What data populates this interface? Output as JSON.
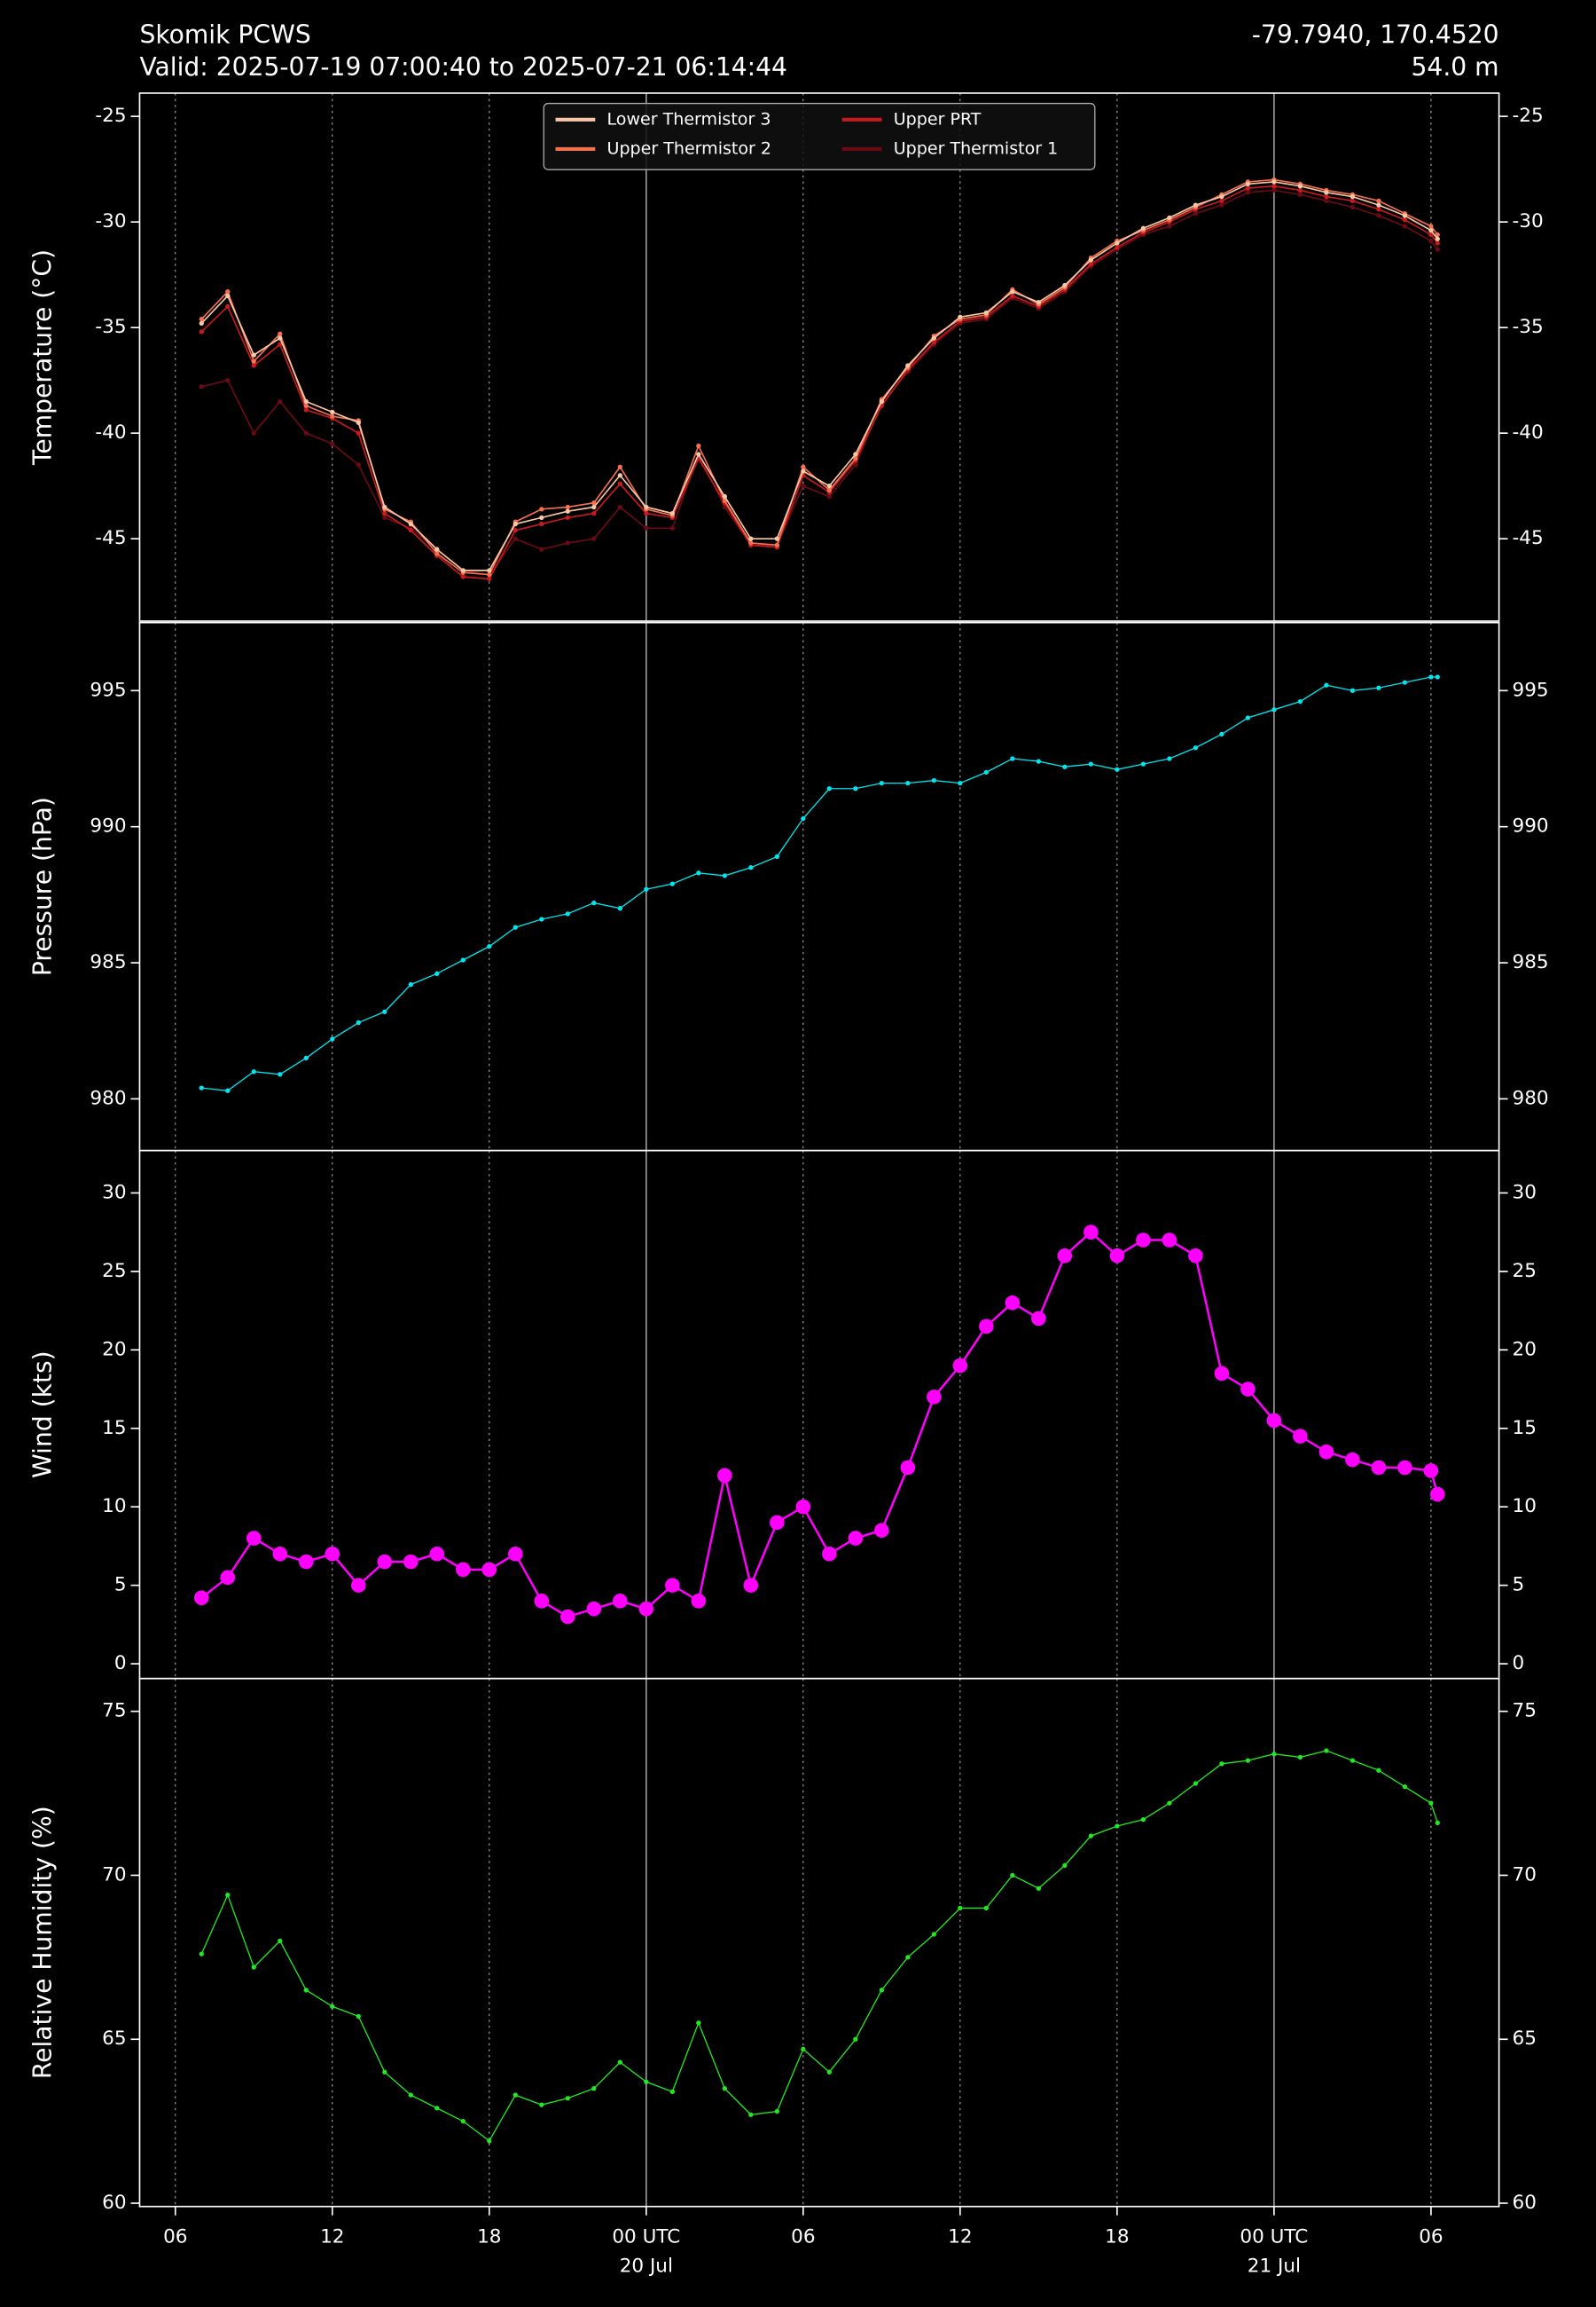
{
  "header": {
    "title": "Skomik PCWS",
    "subtitle": "Valid: 2025-07-19 07:00:40 to 2025-07-21 06:14:44",
    "location": "-79.7940, 170.4520",
    "elevation": "54.0 m"
  },
  "chart_data": [
    {
      "type": "line",
      "y_label": "Temperature (°C)",
      "legend": "upper center",
      "xlim": [
        "19 Jul 04:38",
        "21 Jul 08:36"
      ],
      "ylim": [
        -48.9,
        -23.9
      ],
      "yticks": [
        -45,
        -40,
        -35,
        -30,
        -25
      ],
      "grid": true,
      "x": [
        "19 Jul 07:00",
        "19 Jul 08:00",
        "19 Jul 09:00",
        "19 Jul 10:00",
        "19 Jul 11:00",
        "19 Jul 12:00",
        "19 Jul 13:00",
        "19 Jul 14:00",
        "19 Jul 15:00",
        "19 Jul 16:00",
        "19 Jul 17:00",
        "19 Jul 18:00",
        "19 Jul 19:00",
        "19 Jul 20:00",
        "19 Jul 21:00",
        "19 Jul 22:00",
        "19 Jul 23:00",
        "20 Jul 00:00",
        "20 Jul 01:00",
        "20 Jul 02:00",
        "20 Jul 03:00",
        "20 Jul 04:00",
        "20 Jul 05:00",
        "20 Jul 06:00",
        "20 Jul 07:00",
        "20 Jul 08:00",
        "20 Jul 09:00",
        "20 Jul 10:00",
        "20 Jul 11:00",
        "20 Jul 12:00",
        "20 Jul 13:00",
        "20 Jul 14:00",
        "20 Jul 15:00",
        "20 Jul 16:00",
        "20 Jul 17:00",
        "20 Jul 18:00",
        "20 Jul 19:00",
        "20 Jul 20:00",
        "20 Jul 21:00",
        "20 Jul 22:00",
        "20 Jul 23:00",
        "21 Jul 00:00",
        "21 Jul 01:00",
        "21 Jul 02:00",
        "21 Jul 03:00",
        "21 Jul 04:00",
        "21 Jul 05:00",
        "21 Jul 06:00",
        "21 Jul 06:15"
      ],
      "series": [
        {
          "name": "Lower Thermistor 3",
          "color": "#f9c7a5",
          "values": [
            -34.8,
            -33.5,
            -36.3,
            -35.5,
            -38.5,
            -39,
            -39.5,
            -43.5,
            -44.3,
            -45.5,
            -46.5,
            -46.5,
            -44.3,
            -44,
            -43.7,
            -43.5,
            -42,
            -43.5,
            -43.8,
            -41,
            -43,
            -45,
            -45,
            -41.8,
            -42.5,
            -41,
            -38.5,
            -36.8,
            -35.5,
            -34.5,
            -34.3,
            -33.3,
            -33.8,
            -33,
            -31.8,
            -31,
            -30.3,
            -29.8,
            -29.2,
            -28.8,
            -28.2,
            -28.1,
            -28.3,
            -28.6,
            -28.8,
            -29.2,
            -29.7,
            -30.4,
            -30.8
          ]
        },
        {
          "name": "Upper Thermistor 2",
          "color": "#f4704f",
          "values": [
            -34.6,
            -33.3,
            -36.6,
            -35.3,
            -38.7,
            -39.2,
            -39.4,
            -43.6,
            -44.2,
            -45.7,
            -46.6,
            -46.7,
            -44.2,
            -43.6,
            -43.5,
            -43.3,
            -41.6,
            -43.6,
            -43.9,
            -40.6,
            -43.2,
            -45.2,
            -45.3,
            -41.6,
            -42.7,
            -41.2,
            -38.4,
            -36.9,
            -35.4,
            -34.6,
            -34.4,
            -33.2,
            -33.9,
            -33.1,
            -31.7,
            -30.9,
            -30.4,
            -29.9,
            -29.3,
            -28.7,
            -28.1,
            -28.0,
            -28.2,
            -28.5,
            -28.7,
            -29.0,
            -29.6,
            -30.2,
            -30.6
          ]
        },
        {
          "name": "Upper PRT",
          "color": "#c8191e",
          "values": [
            -35.2,
            -34,
            -36.8,
            -35.8,
            -38.9,
            -39.3,
            -40,
            -43.8,
            -44.6,
            -45.8,
            -46.8,
            -46.9,
            -44.6,
            -44.3,
            -44,
            -43.8,
            -42.4,
            -43.8,
            -44,
            -41.2,
            -43.3,
            -45.3,
            -45.4,
            -42,
            -42.8,
            -41.3,
            -38.7,
            -37,
            -35.7,
            -34.7,
            -34.5,
            -33.5,
            -34,
            -33.2,
            -32,
            -31.2,
            -30.5,
            -30,
            -29.4,
            -29,
            -28.4,
            -28.3,
            -28.5,
            -28.8,
            -29,
            -29.4,
            -29.9,
            -30.6,
            -31
          ]
        },
        {
          "name": "Upper Thermistor 1",
          "color": "#6b0a14",
          "values": [
            -37.8,
            -37.5,
            -40,
            -38.5,
            -40,
            -40.5,
            -41.5,
            -44,
            -44.5,
            -45.5,
            -46.5,
            -46.7,
            -45,
            -45.5,
            -45.2,
            -45,
            -43.5,
            -44.5,
            -44.5,
            -41,
            -43.5,
            -45.3,
            -45.3,
            -42.5,
            -43,
            -41.5,
            -38.6,
            -37.1,
            -35.8,
            -34.8,
            -34.6,
            -33.6,
            -34.1,
            -33.3,
            -32.1,
            -31.3,
            -30.6,
            -30.2,
            -29.6,
            -29.2,
            -28.6,
            -28.5,
            -28.7,
            -29,
            -29.3,
            -29.7,
            -30.2,
            -30.9,
            -31.3
          ]
        }
      ]
    },
    {
      "type": "line",
      "y_label": "Pressure (hPa)",
      "xlim": [
        "19 Jul 04:38",
        "21 Jul 08:36"
      ],
      "ylim": [
        978.1,
        997.5
      ],
      "yticks": [
        980,
        985,
        990,
        995
      ],
      "grid": true,
      "x": [
        "19 Jul 07:00",
        "19 Jul 08:00",
        "19 Jul 09:00",
        "19 Jul 10:00",
        "19 Jul 11:00",
        "19 Jul 12:00",
        "19 Jul 13:00",
        "19 Jul 14:00",
        "19 Jul 15:00",
        "19 Jul 16:00",
        "19 Jul 17:00",
        "19 Jul 18:00",
        "19 Jul 19:00",
        "19 Jul 20:00",
        "19 Jul 21:00",
        "19 Jul 22:00",
        "19 Jul 23:00",
        "20 Jul 00:00",
        "20 Jul 01:00",
        "20 Jul 02:00",
        "20 Jul 03:00",
        "20 Jul 04:00",
        "20 Jul 05:00",
        "20 Jul 06:00",
        "20 Jul 07:00",
        "20 Jul 08:00",
        "20 Jul 09:00",
        "20 Jul 10:00",
        "20 Jul 11:00",
        "20 Jul 12:00",
        "20 Jul 13:00",
        "20 Jul 14:00",
        "20 Jul 15:00",
        "20 Jul 16:00",
        "20 Jul 17:00",
        "20 Jul 18:00",
        "20 Jul 19:00",
        "20 Jul 20:00",
        "20 Jul 21:00",
        "20 Jul 22:00",
        "20 Jul 23:00",
        "21 Jul 00:00",
        "21 Jul 01:00",
        "21 Jul 02:00",
        "21 Jul 03:00",
        "21 Jul 04:00",
        "21 Jul 05:00",
        "21 Jul 06:00",
        "21 Jul 06:15"
      ],
      "series": [
        {
          "name": "Pressure",
          "color": "#00e5ee",
          "values": [
            980.4,
            980.3,
            981,
            980.9,
            981.5,
            982.2,
            982.8,
            983.2,
            984.2,
            984.6,
            985.1,
            985.6,
            986.3,
            986.6,
            986.8,
            987.2,
            987,
            987.7,
            987.9,
            988.3,
            988.2,
            988.5,
            988.9,
            990.3,
            991.4,
            991.4,
            991.6,
            991.6,
            991.7,
            991.6,
            992,
            992.5,
            992.4,
            992.2,
            992.3,
            992.1,
            992.3,
            992.5,
            992.9,
            993.4,
            994,
            994.3,
            994.6,
            995.2,
            995,
            995.1,
            995.3,
            995.5,
            995.5
          ]
        }
      ]
    },
    {
      "type": "line",
      "y_label": "Wind (kts)",
      "xlim": [
        "19 Jul 04:38",
        "21 Jul 08:36"
      ],
      "ylim": [
        -0.94,
        32.7
      ],
      "yticks": [
        0,
        5,
        10,
        15,
        20,
        25,
        30
      ],
      "grid": true,
      "x": [
        "19 Jul 07:00",
        "19 Jul 08:00",
        "19 Jul 09:00",
        "19 Jul 10:00",
        "19 Jul 11:00",
        "19 Jul 12:00",
        "19 Jul 13:00",
        "19 Jul 14:00",
        "19 Jul 15:00",
        "19 Jul 16:00",
        "19 Jul 17:00",
        "19 Jul 18:00",
        "19 Jul 19:00",
        "19 Jul 20:00",
        "19 Jul 21:00",
        "19 Jul 22:00",
        "19 Jul 23:00",
        "20 Jul 00:00",
        "20 Jul 01:00",
        "20 Jul 02:00",
        "20 Jul 03:00",
        "20 Jul 04:00",
        "20 Jul 05:00",
        "20 Jul 06:00",
        "20 Jul 07:00",
        "20 Jul 08:00",
        "20 Jul 09:00",
        "20 Jul 10:00",
        "20 Jul 11:00",
        "20 Jul 12:00",
        "20 Jul 13:00",
        "20 Jul 14:00",
        "20 Jul 15:00",
        "20 Jul 16:00",
        "20 Jul 17:00",
        "20 Jul 18:00",
        "20 Jul 19:00",
        "20 Jul 20:00",
        "20 Jul 21:00",
        "20 Jul 22:00",
        "20 Jul 23:00",
        "21 Jul 00:00",
        "21 Jul 01:00",
        "21 Jul 02:00",
        "21 Jul 03:00",
        "21 Jul 04:00",
        "21 Jul 05:00",
        "21 Jul 06:00",
        "21 Jul 06:15"
      ],
      "series": [
        {
          "name": "Wind",
          "color": "#ff00ff",
          "values": [
            4.2,
            5.5,
            8,
            7,
            6.5,
            7,
            5,
            6.5,
            6.5,
            7,
            6,
            6,
            7,
            4,
            3,
            3.5,
            4,
            3.5,
            5,
            4,
            12,
            5,
            9,
            10,
            7,
            8,
            8.5,
            12.5,
            17,
            19,
            21.5,
            23,
            22,
            26,
            27.5,
            26,
            27,
            27,
            26,
            18.5,
            17.5,
            15.5,
            14.5,
            13.5,
            13,
            12.5,
            12.5,
            12.3,
            10.8
          ]
        }
      ]
    },
    {
      "type": "line",
      "y_label": "Relative Humidity (%)",
      "xlim": [
        "19 Jul 04:38",
        "21 Jul 08:36"
      ],
      "ylim": [
        59.9,
        76
      ],
      "yticks": [
        60,
        65,
        70,
        75
      ],
      "grid": true,
      "xticks": [
        {
          "value": "19 Jul 06:00",
          "label": "06"
        },
        {
          "value": "19 Jul 12:00",
          "label": "12"
        },
        {
          "value": "19 Jul 18:00",
          "label": "18"
        },
        {
          "value": "20 Jul 00:00",
          "label": [
            "00 UTC",
            "20 Jul"
          ]
        },
        {
          "value": "20 Jul 06:00",
          "label": "06"
        },
        {
          "value": "20 Jul 12:00",
          "label": "12"
        },
        {
          "value": "20 Jul 18:00",
          "label": "18"
        },
        {
          "value": "21 Jul 00:00",
          "label": [
            "00 UTC",
            "21 Jul"
          ]
        },
        {
          "value": "21 Jul 06:00",
          "label": "06"
        }
      ],
      "x": [
        "19 Jul 07:00",
        "19 Jul 08:00",
        "19 Jul 09:00",
        "19 Jul 10:00",
        "19 Jul 11:00",
        "19 Jul 12:00",
        "19 Jul 13:00",
        "19 Jul 14:00",
        "19 Jul 15:00",
        "19 Jul 16:00",
        "19 Jul 17:00",
        "19 Jul 18:00",
        "19 Jul 19:00",
        "19 Jul 20:00",
        "19 Jul 21:00",
        "19 Jul 22:00",
        "19 Jul 23:00",
        "20 Jul 00:00",
        "20 Jul 01:00",
        "20 Jul 02:00",
        "20 Jul 03:00",
        "20 Jul 04:00",
        "20 Jul 05:00",
        "20 Jul 06:00",
        "20 Jul 07:00",
        "20 Jul 08:00",
        "20 Jul 09:00",
        "20 Jul 10:00",
        "20 Jul 11:00",
        "20 Jul 12:00",
        "20 Jul 13:00",
        "20 Jul 14:00",
        "20 Jul 15:00",
        "20 Jul 16:00",
        "20 Jul 17:00",
        "20 Jul 18:00",
        "20 Jul 19:00",
        "20 Jul 20:00",
        "20 Jul 21:00",
        "20 Jul 22:00",
        "20 Jul 23:00",
        "21 Jul 00:00",
        "21 Jul 01:00",
        "21 Jul 02:00",
        "21 Jul 03:00",
        "21 Jul 04:00",
        "21 Jul 05:00",
        "21 Jul 06:00",
        "21 Jul 06:15"
      ],
      "series": [
        {
          "name": "Relative Humidity",
          "color": "#22e822",
          "values": [
            67.6,
            69.4,
            67.2,
            68,
            66.5,
            66,
            65.7,
            64,
            63.3,
            62.9,
            62.5,
            61.9,
            63.3,
            63,
            63.2,
            63.5,
            64.3,
            63.7,
            63.4,
            65.5,
            63.5,
            62.7,
            62.8,
            64.7,
            64,
            65,
            66.5,
            67.5,
            68.2,
            69,
            69,
            70,
            69.6,
            70.3,
            71.2,
            71.5,
            71.7,
            72.2,
            72.8,
            73.4,
            73.5,
            73.7,
            73.6,
            73.8,
            73.5,
            73.2,
            72.7,
            72.2,
            71.6
          ]
        }
      ]
    }
  ]
}
